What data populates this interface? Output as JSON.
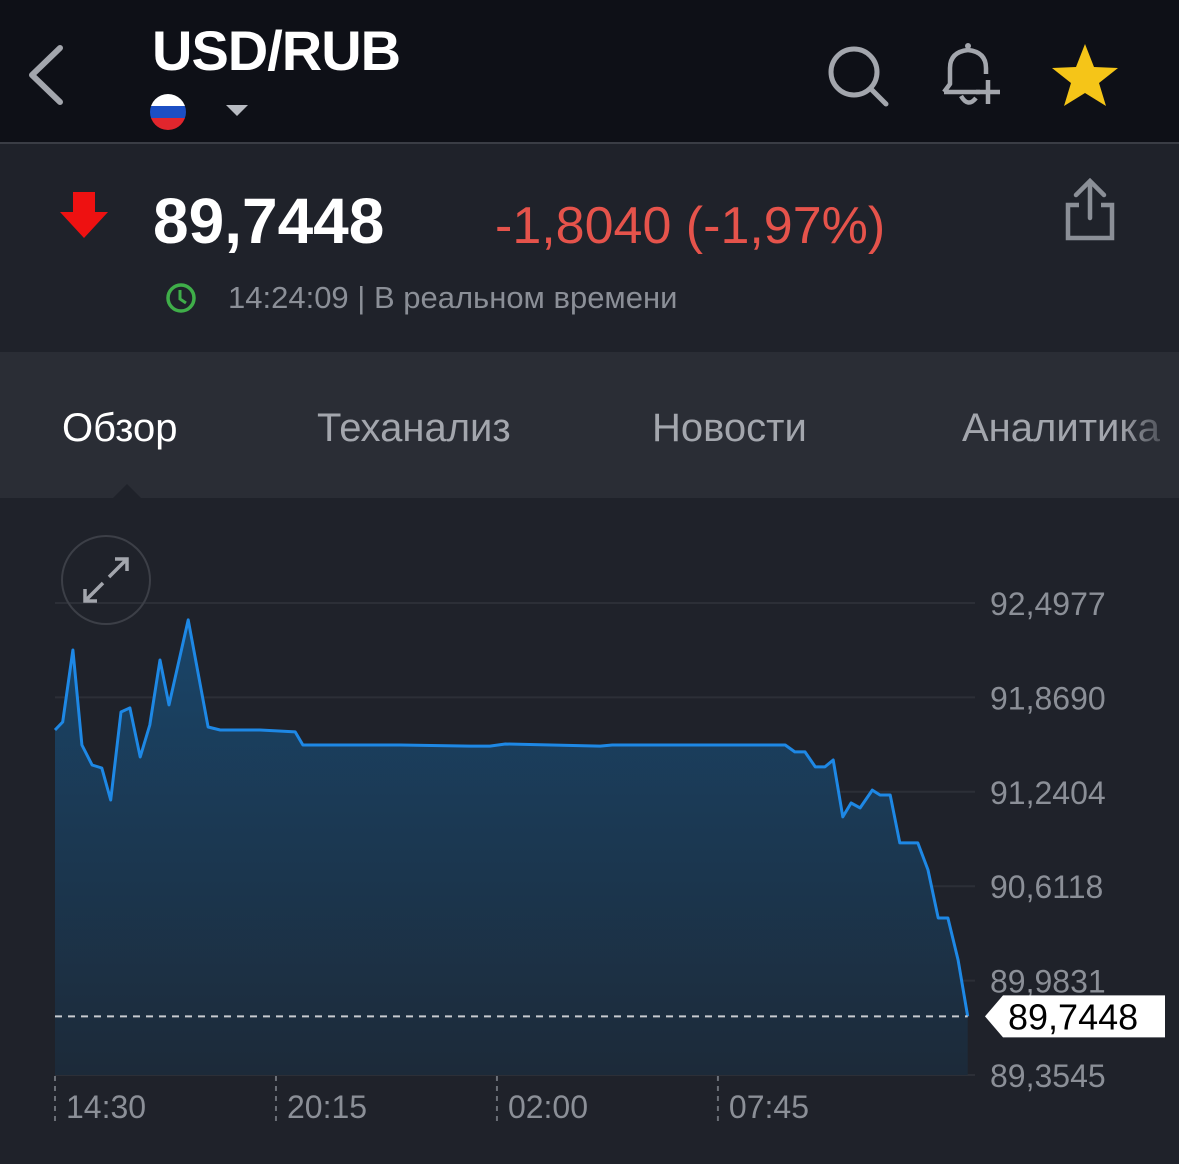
{
  "header": {
    "title": "USD/RUB",
    "icons": [
      "back-chevron-icon",
      "russia-flag-icon",
      "caret-down-icon",
      "search-icon",
      "bell-plus-icon",
      "star-icon"
    ],
    "star_color": "#f5c518"
  },
  "quote": {
    "price": "89,7448",
    "change": "-1,8040 (-1,97%)",
    "timestamp": "14:24:09 | В реальном времени",
    "direction": "down",
    "change_color": "#e5534b",
    "status_color": "#3fae49"
  },
  "tabs": [
    {
      "label": "Обзор",
      "active": true
    },
    {
      "label": "Теханализ",
      "active": false
    },
    {
      "label": "Новости",
      "active": false
    },
    {
      "label": "Аналитика",
      "active": false
    }
  ],
  "chart_data": {
    "type": "area",
    "line_color": "#1e88e5",
    "grid": true,
    "y_ticks": [
      "92,4977",
      "91,8690",
      "91,2404",
      "90,6118",
      "89,9831",
      "89,3545"
    ],
    "ylim": [
      89.3545,
      92.4977
    ],
    "x_ticks": [
      "14:30",
      "20:15",
      "02:00",
      "07:45"
    ],
    "current_value_label": "89,7448",
    "current_value": 89.7448,
    "points": [
      [
        "14:30",
        91.652
      ],
      [
        "14:42",
        91.705
      ],
      [
        "14:58",
        92.185
      ],
      [
        "15:12",
        91.552
      ],
      [
        "15:28",
        91.419
      ],
      [
        "15:43",
        91.399
      ],
      [
        "15:57",
        91.186
      ],
      [
        "16:13",
        91.772
      ],
      [
        "16:27",
        91.799
      ],
      [
        "16:43",
        91.472
      ],
      [
        "16:58",
        91.685
      ],
      [
        "17:14",
        92.118
      ],
      [
        "17:28",
        91.819
      ],
      [
        "17:58",
        92.385
      ],
      [
        "18:29",
        91.672
      ],
      [
        "18:48",
        91.652
      ],
      [
        "19:50",
        91.652
      ],
      [
        "20:45",
        91.639
      ],
      [
        "20:57",
        91.552
      ],
      [
        "23:29",
        91.552
      ],
      [
        "01:18",
        91.545
      ],
      [
        "01:49",
        91.545
      ],
      [
        "02:13",
        91.559
      ],
      [
        "04:41",
        91.545
      ],
      [
        "05:00",
        91.552
      ],
      [
        "07:17",
        91.552
      ],
      [
        "09:30",
        91.552
      ],
      [
        "09:45",
        91.506
      ],
      [
        "10:01",
        91.506
      ],
      [
        "10:17",
        91.406
      ],
      [
        "10:32",
        91.406
      ],
      [
        "10:45",
        91.452
      ],
      [
        "11:00",
        91.073
      ],
      [
        "11:13",
        91.166
      ],
      [
        "11:27",
        91.133
      ],
      [
        "11:46",
        91.252
      ],
      [
        "11:58",
        91.219
      ],
      [
        "12:14",
        91.219
      ],
      [
        "12:29",
        90.9
      ],
      [
        "12:57",
        90.9
      ],
      [
        "13:13",
        90.72
      ],
      [
        "13:29",
        90.4
      ],
      [
        "13:44",
        90.4
      ],
      [
        "14:00",
        90.12
      ],
      [
        "14:15",
        89.7448
      ]
    ]
  }
}
